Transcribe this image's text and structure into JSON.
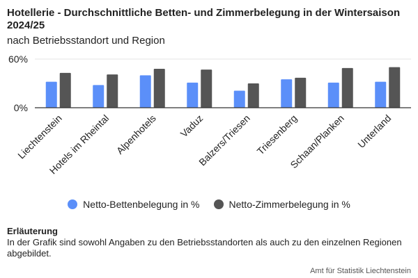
{
  "chart_data": {
    "type": "bar",
    "title": "Hotellerie - Durchschnittliche Betten- und Zimmerbelegung in der Wintersaison 2024/25",
    "subtitle": "nach Betriebsstandort und Region",
    "categories": [
      "Liechtenstein",
      "Hotels im Rheintal",
      "Alpenhotels",
      "Vaduz",
      "Balzers/Triesen",
      "Triesenberg",
      "Schaan/Planken",
      "Unterland"
    ],
    "series": [
      {
        "name": "Netto-Bettenbelegung in %",
        "color": "#5b8ff9",
        "values": [
          32,
          28,
          40,
          31,
          21,
          35,
          31,
          32
        ]
      },
      {
        "name": "Netto-Zimmerbelegung in %",
        "color": "#555555",
        "values": [
          43,
          41,
          48,
          47,
          30,
          37,
          49,
          50
        ]
      }
    ],
    "yticks": [
      "0%",
      "60%"
    ],
    "ylim": [
      0,
      60
    ],
    "grid": true,
    "legend_position": "bottom"
  },
  "note": {
    "heading": "Erläuterung",
    "text": "In der Grafik sind sowohl Angaben zu den Betriebsstandorten als auch zu den einzelnen Regionen abgebildet."
  },
  "source": "Amt für Statistik Liechtenstein"
}
